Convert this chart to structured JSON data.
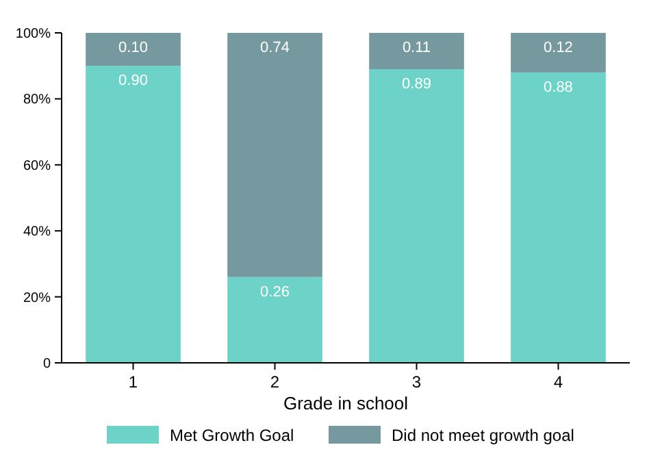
{
  "chart_data": {
    "type": "bar",
    "xlabel": "Grade in school",
    "categories": [
      "1",
      "2",
      "3",
      "4"
    ],
    "stacked": true,
    "series": [
      {
        "name": "Met Growth Goal",
        "color": "#6dd3c9",
        "values": [
          0.9,
          0.26,
          0.89,
          0.88
        ],
        "value_labels": [
          "0.90",
          "0.26",
          "0.89",
          "0.88"
        ]
      },
      {
        "name": "Did not meet growth goal",
        "color": "#76999f",
        "values": [
          0.1,
          0.74,
          0.11,
          0.12
        ],
        "value_labels": [
          "0.10",
          "0.74",
          "0.11",
          "0.12"
        ]
      }
    ],
    "ylim": [
      0,
      1
    ],
    "yticks": [
      {
        "value": 0,
        "label": "0"
      },
      {
        "value": 0.2,
        "label": "20%"
      },
      {
        "value": 0.4,
        "label": "40%"
      },
      {
        "value": 0.6,
        "label": "60%"
      },
      {
        "value": 0.8,
        "label": "80%"
      },
      {
        "value": 1,
        "label": "100%"
      }
    ],
    "legend": "bottom",
    "grid": false
  }
}
